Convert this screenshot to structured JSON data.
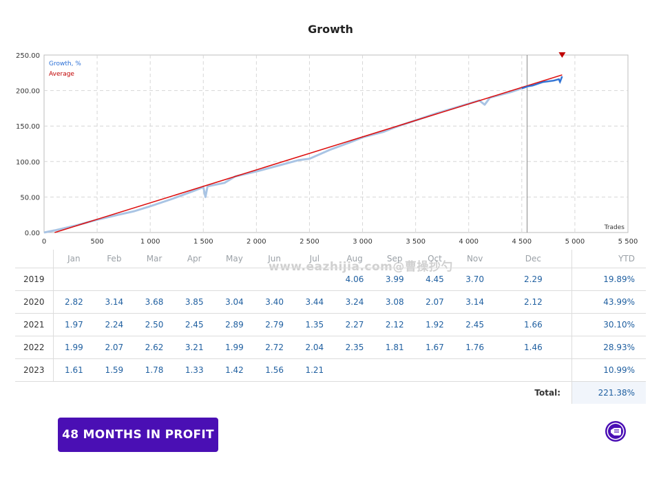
{
  "chart_data": {
    "type": "line",
    "title": "Growth",
    "xlabel": "Trades",
    "ylabel": "",
    "xlim": [
      0,
      5500
    ],
    "ylim": [
      0,
      250
    ],
    "x_ticks": [
      "0",
      "500",
      "1 000",
      "1 500",
      "2 000",
      "2 500",
      "3 000",
      "3 500",
      "4 000",
      "4 500",
      "5 000",
      "5 500"
    ],
    "y_ticks": [
      "0.00",
      "50.00",
      "100.00",
      "150.00",
      "200.00",
      "250.00"
    ],
    "grid": true,
    "legend_position": "top-left",
    "series": [
      {
        "name": "Growth, %",
        "color": "#a9c4e4",
        "x": [
          0,
          100,
          300,
          500,
          700,
          850,
          1000,
          1200,
          1400,
          1500,
          1520,
          1540,
          1600,
          1700,
          1800,
          2000,
          2200,
          2400,
          2500,
          2700,
          2900,
          3000,
          3200,
          3300,
          3500,
          3700,
          3900,
          4100,
          4150,
          4200,
          4400,
          4500,
          4560,
          4600,
          4700,
          4800,
          4850,
          4860,
          4880
        ],
        "y": [
          0,
          3,
          10,
          18,
          25,
          30,
          37,
          47,
          58,
          64,
          50,
          65,
          67,
          70,
          79,
          86,
          94,
          102,
          104,
          117,
          128,
          134,
          142,
          148,
          158,
          168,
          177,
          186,
          180,
          190,
          198,
          203,
          206,
          207,
          212,
          214,
          216,
          212,
          220
        ]
      },
      {
        "name": "Average",
        "color": "#dd1111",
        "x": [
          100,
          4880
        ],
        "y": [
          0,
          222
        ]
      }
    ],
    "markers": [
      {
        "name": "average-end-marker",
        "x": 4880,
        "y": 250,
        "color": "#c00000"
      }
    ],
    "vertical_marker_x": 4550
  },
  "monthly_table": {
    "headers": [
      "Jan",
      "Feb",
      "Mar",
      "Apr",
      "May",
      "Jun",
      "Jul",
      "Aug",
      "Sep",
      "Oct",
      "Nov",
      "Dec"
    ],
    "ytd_header": "YTD",
    "rows": [
      {
        "year": "2019",
        "values": [
          "",
          "",
          "",
          "",
          "",
          "",
          "",
          "4.06",
          "3.99",
          "4.45",
          "3.70",
          "2.29"
        ],
        "ytd": "19.89%"
      },
      {
        "year": "2020",
        "values": [
          "2.82",
          "3.14",
          "3.68",
          "3.85",
          "3.04",
          "3.40",
          "3.44",
          "3.24",
          "3.08",
          "2.07",
          "3.14",
          "2.12"
        ],
        "ytd": "43.99%"
      },
      {
        "year": "2021",
        "values": [
          "1.97",
          "2.24",
          "2.50",
          "2.45",
          "2.89",
          "2.79",
          "1.35",
          "2.27",
          "2.12",
          "1.92",
          "2.45",
          "1.66"
        ],
        "ytd": "30.10%"
      },
      {
        "year": "2022",
        "values": [
          "1.99",
          "2.07",
          "2.62",
          "3.21",
          "1.99",
          "2.72",
          "2.04",
          "2.35",
          "1.81",
          "1.67",
          "1.76",
          "1.46"
        ],
        "ytd": "28.93%"
      },
      {
        "year": "2023",
        "values": [
          "1.61",
          "1.59",
          "1.78",
          "1.33",
          "1.42",
          "1.56",
          "1.21",
          "",
          "",
          "",
          "",
          ""
        ],
        "ytd": "10.99%"
      }
    ],
    "total_label": "Total:",
    "total_value": "221.38%"
  },
  "watermark": "www.eazhijia.com@曹操抄勺",
  "profit_button": {
    "label": "48 MONTHS IN PROFIT",
    "color": "#4a0fb4"
  },
  "profit_icon": {
    "icon": "hand-badge-icon",
    "color": "#4a0fb4"
  }
}
